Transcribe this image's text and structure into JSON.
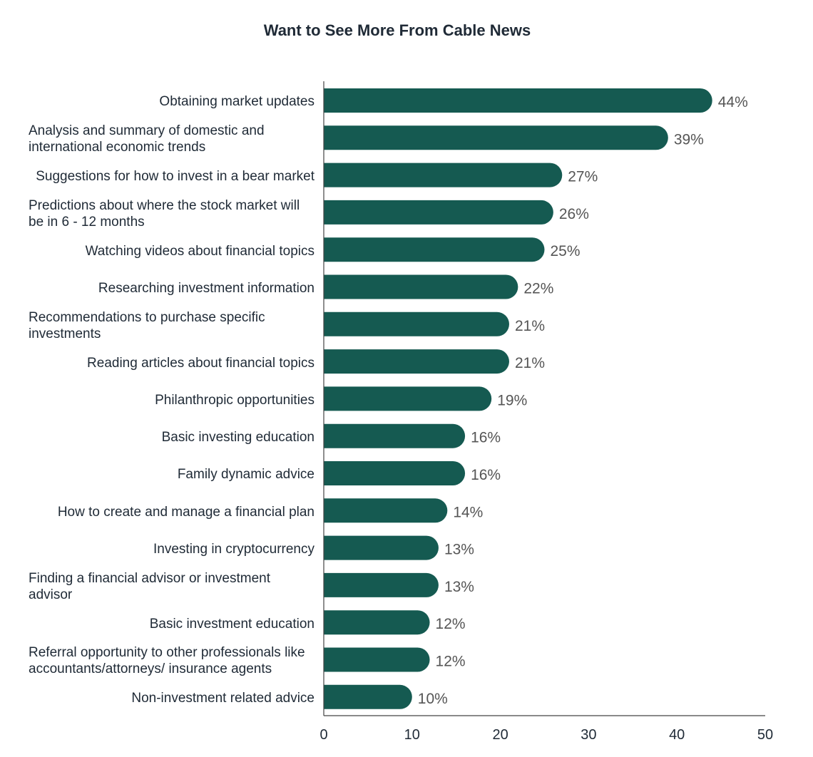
{
  "chart_data": {
    "type": "bar",
    "orientation": "horizontal",
    "title": "Want to See More From Cable News",
    "xlabel": "",
    "ylabel": "",
    "xlim": [
      0,
      50
    ],
    "ticks": [
      "0",
      "10",
      "20",
      "30",
      "40",
      "50"
    ],
    "grid": false,
    "legend": "none",
    "bar_color": "#155a51",
    "value_label_color": "#555555",
    "categories": [
      "Obtaining market updates",
      "Analysis and summary of domestic and international economic trends",
      "Suggestions for how to invest in a bear market",
      "Predictions about where the stock market will be in 6 - 12 months",
      "Watching videos about financial topics",
      "Researching investment information",
      "Recommendations to purchase specific investments",
      "Reading articles about financial topics",
      "Philanthropic opportunities",
      "Basic investing education",
      "Family dynamic advice",
      "How to create and manage a financial plan",
      "Investing in cryptocurrency",
      "Finding a financial advisor or investment advisor",
      "Basic investment education",
      "Referral opportunity to other professionals like accountants/attorneys/ insurance agents",
      "Non-investment related advice"
    ],
    "values": [
      44,
      39,
      27,
      26,
      25,
      22,
      21,
      21,
      19,
      16,
      16,
      14,
      13,
      13,
      12,
      12,
      10
    ],
    "value_labels": [
      "44%",
      "39%",
      "27%",
      "26%",
      "25%",
      "22%",
      "21%",
      "21%",
      "19%",
      "16%",
      "16%",
      "14%",
      "13%",
      "13%",
      "12%",
      "12%",
      "10%"
    ]
  }
}
